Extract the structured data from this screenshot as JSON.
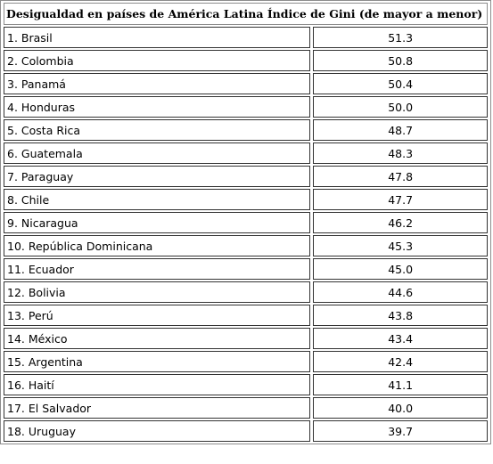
{
  "table": {
    "title": "Desigualdad en países de América Latina Índice de Gini (de mayor a menor)",
    "rows": [
      {
        "country": "1. Brasil",
        "value": "51.3"
      },
      {
        "country": "2. Colombia",
        "value": "50.8"
      },
      {
        "country": "3. Panamá",
        "value": "50.4"
      },
      {
        "country": "4. Honduras",
        "value": "50.0"
      },
      {
        "country": "5. Costa Rica",
        "value": "48.7"
      },
      {
        "country": "6. Guatemala",
        "value": "48.3"
      },
      {
        "country": "7. Paraguay",
        "value": "47.8"
      },
      {
        "country": "8. Chile",
        "value": "47.7"
      },
      {
        "country": "9. Nicaragua",
        "value": "46.2"
      },
      {
        "country": "10. República Dominicana",
        "value": "45.3"
      },
      {
        "country": "11. Ecuador",
        "value": "45.0"
      },
      {
        "country": "12. Bolivia",
        "value": "44.6"
      },
      {
        "country": "13. Perú",
        "value": "43.8"
      },
      {
        "country": "14. México",
        "value": "43.4"
      },
      {
        "country": "15. Argentina",
        "value": "42.4"
      },
      {
        "country": "16. Haití",
        "value": "41.1"
      },
      {
        "country": "17. El Salvador",
        "value": "40.0"
      },
      {
        "country": "18. Uruguay",
        "value": "39.7"
      }
    ]
  }
}
